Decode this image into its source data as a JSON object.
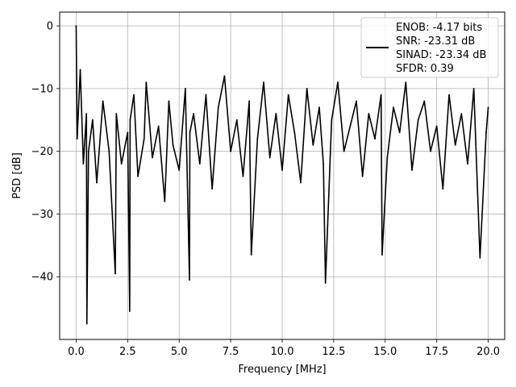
{
  "chart_data": {
    "type": "line",
    "title": "",
    "xlabel": "Frequency [MHz]",
    "ylabel": "PSD [dB]",
    "xlim": [
      -0.8,
      20.8
    ],
    "ylim": [
      -50.0,
      2.2
    ],
    "xticks": [
      0.0,
      2.5,
      5.0,
      7.5,
      10.0,
      12.5,
      15.0,
      17.5,
      20.0
    ],
    "xtick_labels": [
      "0.0",
      "2.5",
      "5.0",
      "7.5",
      "10.0",
      "12.5",
      "15.0",
      "17.5",
      "20.0"
    ],
    "yticks": [
      0,
      -10,
      -20,
      -30,
      -40
    ],
    "ytick_labels": [
      "0",
      "−10",
      "−20",
      "−30",
      "−40"
    ],
    "grid": true,
    "legend_position": "top-right",
    "line_color": "#000000",
    "series": [
      {
        "legend_lines": [
          "ENOB: -4.17 bits",
          "SNR: -23.31 dB",
          "SINAD: -23.34 dB",
          "SFDR: 0.39"
        ],
        "x": [
          0.0,
          0.05,
          0.2,
          0.35,
          0.5,
          0.52,
          0.6,
          0.8,
          1.0,
          1.3,
          1.6,
          1.9,
          1.95,
          2.2,
          2.5,
          2.6,
          2.62,
          2.8,
          3.0,
          3.3,
          3.4,
          3.7,
          4.0,
          4.3,
          4.5,
          4.7,
          5.0,
          5.3,
          5.5,
          5.52,
          5.7,
          6.0,
          6.3,
          6.6,
          6.9,
          7.2,
          7.5,
          7.8,
          8.1,
          8.4,
          8.5,
          8.8,
          9.1,
          9.4,
          9.7,
          10.0,
          10.3,
          10.6,
          10.9,
          11.2,
          11.5,
          11.8,
          12.0,
          12.1,
          12.4,
          12.7,
          13.0,
          13.3,
          13.6,
          13.9,
          14.2,
          14.5,
          14.8,
          14.85,
          15.1,
          15.4,
          15.7,
          16.0,
          16.3,
          16.6,
          16.9,
          17.2,
          17.5,
          17.8,
          18.1,
          18.4,
          18.7,
          19.0,
          19.3,
          19.6,
          19.9,
          20.0
        ],
        "y": [
          0.0,
          -18.0,
          -7.0,
          -22.0,
          -14.0,
          -47.5,
          -20.0,
          -15.0,
          -25.0,
          -12.0,
          -20.0,
          -39.5,
          -14.0,
          -22.0,
          -17.0,
          -45.5,
          -15.0,
          -11.0,
          -24.0,
          -18.0,
          -9.0,
          -21.0,
          -16.0,
          -28.0,
          -12.0,
          -19.0,
          -23.0,
          -10.0,
          -40.5,
          -17.0,
          -14.0,
          -22.0,
          -11.0,
          -26.0,
          -13.0,
          -8.0,
          -20.0,
          -15.0,
          -24.0,
          -12.0,
          -36.5,
          -18.0,
          -9.0,
          -21.0,
          -14.0,
          -23.0,
          -11.0,
          -17.0,
          -25.0,
          -10.0,
          -19.0,
          -13.0,
          -22.0,
          -41.0,
          -15.0,
          -9.0,
          -20.0,
          -16.0,
          -12.0,
          -24.0,
          -14.0,
          -18.0,
          -11.0,
          -36.5,
          -21.0,
          -13.0,
          -17.0,
          -9.0,
          -23.0,
          -15.0,
          -12.0,
          -20.0,
          -16.0,
          -26.0,
          -11.0,
          -19.0,
          -14.0,
          -22.0,
          -10.0,
          -37.0,
          -17.0,
          -13.0
        ]
      }
    ]
  }
}
